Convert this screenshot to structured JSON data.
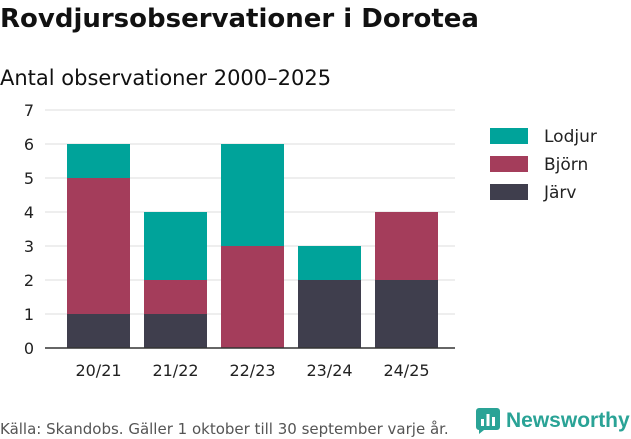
{
  "title": "Rovdjursobservationer i Dorotea",
  "subtitle": "Antal observationer 2000–2025",
  "source": "Källa: Skandobs. Gäller 1 oktober till 30 september varje år.",
  "brand": "Newsworthy",
  "chart_data": {
    "type": "bar",
    "stacked": true,
    "categories": [
      "20/21",
      "21/22",
      "22/23",
      "23/24",
      "24/25"
    ],
    "series": [
      {
        "name": "Järv",
        "color": "#3f3e4d",
        "values": [
          1,
          1,
          0,
          2,
          2
        ]
      },
      {
        "name": "Björn",
        "color": "#a43d5b",
        "values": [
          4,
          1,
          3,
          0,
          2
        ]
      },
      {
        "name": "Lodjur",
        "color": "#00a39a",
        "values": [
          1,
          2,
          3,
          1,
          0
        ]
      }
    ],
    "legend_order": [
      "Lodjur",
      "Björn",
      "Järv"
    ],
    "ylim": [
      0,
      7
    ],
    "yticks": [
      0,
      1,
      2,
      3,
      4,
      5,
      6,
      7
    ],
    "xlabel": "",
    "ylabel": "",
    "grid": true,
    "legend_position": "right"
  }
}
